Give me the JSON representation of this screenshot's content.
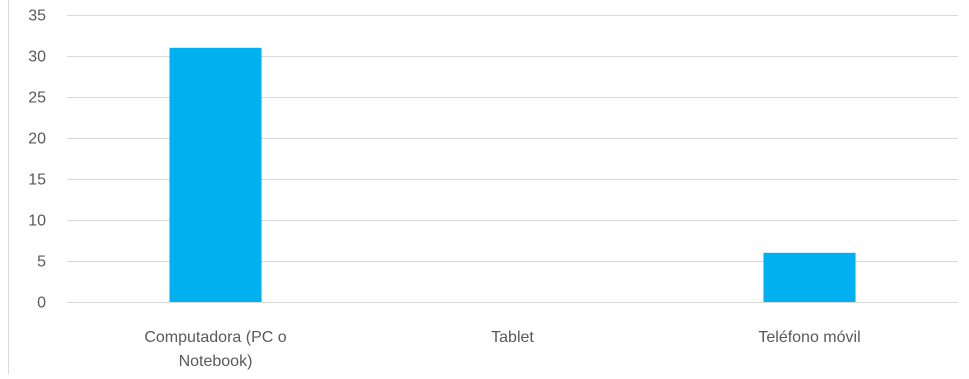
{
  "chart_data": {
    "type": "bar",
    "title": "",
    "xlabel": "",
    "ylabel": "",
    "categories": [
      [
        "Computadora (PC o",
        "Notebook)"
      ],
      [
        "Tablet"
      ],
      [
        "Teléfono móvil"
      ]
    ],
    "values": [
      31,
      0,
      6
    ],
    "ylim": [
      0,
      35
    ],
    "yticks": [
      "0",
      "5",
      "10",
      "15",
      "20",
      "25",
      "30",
      "35"
    ],
    "grid": true,
    "legend": "none",
    "colors": {
      "bar": "#00b0f0",
      "grid": "#d9d9d9",
      "axis": "#d9d9d9",
      "text": "#595959"
    }
  }
}
